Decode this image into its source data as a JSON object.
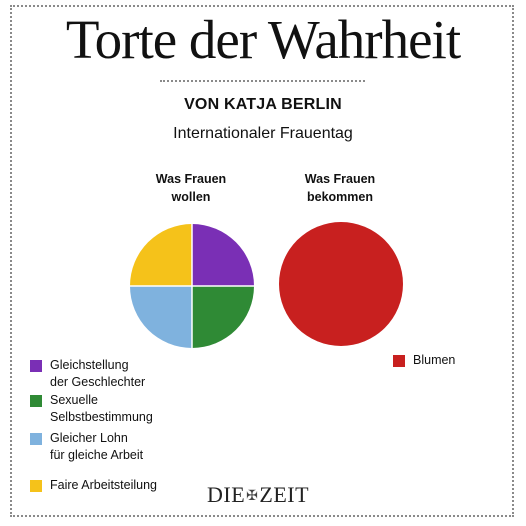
{
  "page": {
    "title": "Torte der Wahrheit",
    "byline": "VON KATJA BERLIN",
    "occasion": "Internationaler Frauentag",
    "logo_left": "DIE",
    "logo_right": "ZEIT"
  },
  "chart_data": [
    {
      "type": "pie",
      "title": "Was Frauen\nwollen",
      "slices": [
        {
          "label": "Gleichstellung\nder Geschlechter",
          "value": 25,
          "color": "#7a2fb5"
        },
        {
          "label": "Sexuelle\nSelbstbestimmung",
          "value": 25,
          "color": "#2f8a35"
        },
        {
          "label": "Gleicher Lohn\nfür gleiche Arbeit",
          "value": 25,
          "color": "#7fb2de"
        },
        {
          "label": "Faire Arbeitsteilung",
          "value": 25,
          "color": "#f5c21a"
        }
      ],
      "start_angle_deg": 0,
      "legend": "bottom-left"
    },
    {
      "type": "pie",
      "title": "Was Frauen\nbekommen",
      "slices": [
        {
          "label": "Blumen",
          "value": 100,
          "color": "#c8201f"
        }
      ],
      "legend": "bottom-right"
    }
  ]
}
